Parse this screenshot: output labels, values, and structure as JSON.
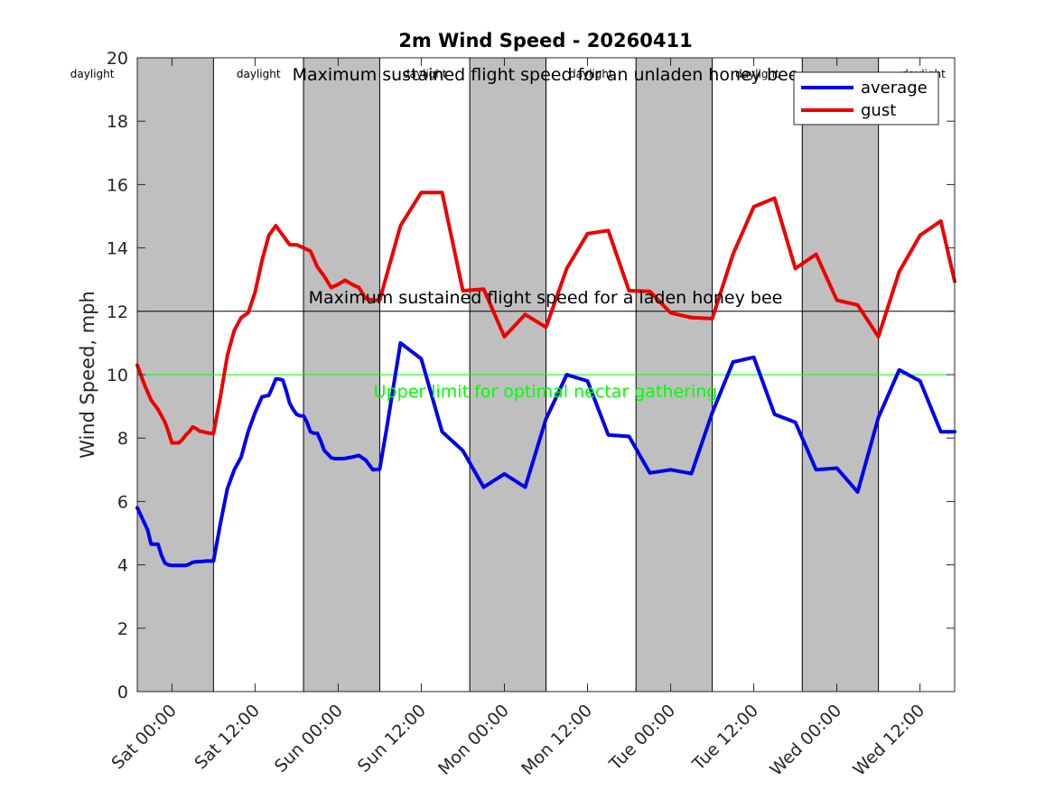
{
  "chart_data": {
    "type": "line",
    "title": "2m Wind Speed - 20260411",
    "xlabel": "",
    "ylabel": "Wind Speed, mph",
    "ylim": [
      0,
      20
    ],
    "yticks": [
      0,
      2,
      4,
      6,
      8,
      10,
      12,
      14,
      16,
      18,
      20
    ],
    "xlim": [
      -10,
      226
    ],
    "xticks": [
      {
        "x": 0,
        "label": "Sat 00:00"
      },
      {
        "x": 24,
        "label": "Sat 12:00"
      },
      {
        "x": 48,
        "label": "Sun 00:00"
      },
      {
        "x": 72,
        "label": "Sun 12:00"
      },
      {
        "x": 96,
        "label": "Mon 00:00"
      },
      {
        "x": 120,
        "label": "Mon 12:00"
      },
      {
        "x": 144,
        "label": "Tue 00:00"
      },
      {
        "x": 168,
        "label": "Tue 12:00"
      },
      {
        "x": 192,
        "label": "Wed 00:00"
      },
      {
        "x": 216,
        "label": "Wed 12:00"
      }
    ],
    "night_bands": [
      [
        -10,
        12
      ],
      [
        38,
        60
      ],
      [
        86,
        108
      ],
      [
        134,
        156
      ],
      [
        182,
        204
      ]
    ],
    "daylight_labels": [
      {
        "x": -23,
        "text": "daylight"
      },
      {
        "x": 25,
        "text": "daylight"
      },
      {
        "x": 73,
        "text": "daylight"
      },
      {
        "x": 121,
        "text": "daylight"
      },
      {
        "x": 169,
        "text": "daylight"
      },
      {
        "x": 217,
        "text": "daylight"
      }
    ],
    "reference_lines": [
      {
        "y": 20,
        "label": "Maximum sustained flight speed for an unladen honey bee",
        "color": "#000000"
      },
      {
        "y": 12,
        "label": "Maximum sustained flight speed for a laden honey bee",
        "color": "#000000"
      },
      {
        "y": 10,
        "label": "Upper limit for optimal nectar gathering",
        "color": "#00ff00"
      }
    ],
    "series": [
      {
        "name": "average",
        "color": "#0000ee",
        "x": [
          -10,
          -7,
          -6,
          -5,
          -4,
          -3,
          -2,
          -1,
          0,
          1,
          2,
          3,
          4,
          5,
          6,
          7,
          8,
          9,
          10,
          11,
          12,
          14,
          16,
          18,
          20,
          22,
          24,
          26,
          28,
          29,
          30,
          31,
          32,
          33,
          34,
          35,
          36,
          37,
          38,
          39,
          40,
          41,
          42,
          43,
          44,
          45,
          46,
          47,
          48,
          49,
          50,
          51,
          52,
          54,
          56,
          58,
          60,
          62,
          66,
          72,
          78,
          84,
          90,
          96,
          102,
          108,
          114,
          120,
          126,
          132,
          138,
          144,
          150,
          156,
          162,
          168,
          174,
          180,
          186,
          192,
          198,
          204,
          210,
          216,
          222,
          226
        ],
        "values": [
          5.8,
          5.1,
          4.65,
          4.65,
          4.65,
          4.3,
          4.05,
          4.0,
          3.98,
          3.98,
          3.98,
          3.98,
          3.98,
          4.02,
          4.08,
          4.1,
          4.1,
          4.11,
          4.12,
          4.12,
          4.12,
          5.3,
          6.4,
          7.0,
          7.4,
          8.2,
          8.8,
          9.3,
          9.35,
          9.6,
          9.87,
          9.86,
          9.83,
          9.5,
          9.1,
          8.9,
          8.75,
          8.7,
          8.7,
          8.5,
          8.2,
          8.15,
          8.15,
          7.9,
          7.6,
          7.5,
          7.38,
          7.35,
          7.35,
          7.35,
          7.36,
          7.38,
          7.4,
          7.45,
          7.3,
          7.0,
          7.02,
          8.3,
          11.0,
          10.5,
          8.2,
          7.6,
          6.45,
          6.87,
          6.45,
          8.6,
          10.0,
          9.8,
          8.1,
          8.05,
          6.9,
          7.0,
          6.88,
          8.8,
          10.4,
          10.55,
          8.75,
          8.5,
          7.0,
          7.05,
          6.3,
          8.65,
          10.15,
          9.8,
          8.2,
          8.2
        ]
      },
      {
        "name": "gust",
        "color": "#ee0000",
        "x": [
          -10,
          -8,
          -7,
          -6,
          -5,
          -4,
          -3,
          -2,
          -1,
          0,
          1,
          2,
          3,
          4,
          5,
          6,
          7,
          8,
          9,
          10,
          11,
          12,
          14,
          16,
          18,
          20,
          22,
          24,
          26,
          28,
          30,
          32,
          34,
          36,
          38,
          40,
          42,
          44,
          46,
          48,
          50,
          52,
          54,
          56,
          58,
          60,
          66,
          72,
          78,
          84,
          90,
          96,
          102,
          108,
          114,
          120,
          126,
          132,
          138,
          144,
          150,
          156,
          162,
          168,
          174,
          180,
          186,
          192,
          198,
          204,
          210,
          216,
          222,
          226
        ],
        "values": [
          10.3,
          9.7,
          9.45,
          9.2,
          9.05,
          8.9,
          8.7,
          8.5,
          8.2,
          7.85,
          7.85,
          7.85,
          7.95,
          8.1,
          8.2,
          8.35,
          8.3,
          8.22,
          8.2,
          8.17,
          8.15,
          8.15,
          9.3,
          10.6,
          11.4,
          11.8,
          11.95,
          12.6,
          13.6,
          14.4,
          14.7,
          14.4,
          14.1,
          14.1,
          14.0,
          13.9,
          13.4,
          13.1,
          12.75,
          12.85,
          12.98,
          12.85,
          12.75,
          12.4,
          12.35,
          12.35,
          14.7,
          15.75,
          15.75,
          12.65,
          12.7,
          11.2,
          11.9,
          11.5,
          13.35,
          14.45,
          14.55,
          12.65,
          12.63,
          11.95,
          11.8,
          11.77,
          13.8,
          15.3,
          15.57,
          13.35,
          13.8,
          12.35,
          12.2,
          11.2,
          13.25,
          14.4,
          14.85,
          12.95
        ]
      }
    ],
    "legend": {
      "placement": "top-right",
      "entries": [
        "average",
        "gust"
      ]
    }
  }
}
